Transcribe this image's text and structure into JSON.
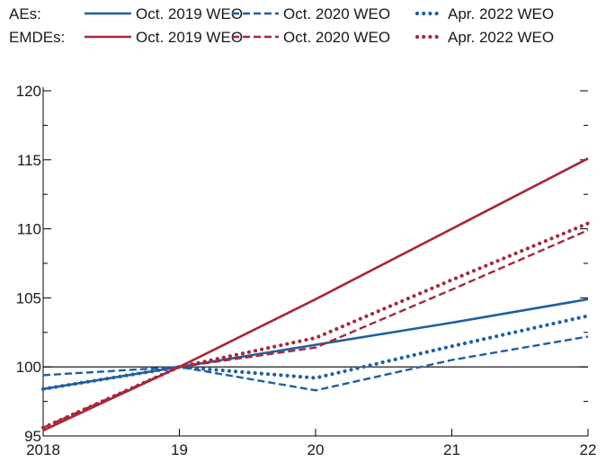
{
  "chart_data": {
    "type": "line",
    "x": [
      "2018",
      "19",
      "20",
      "21",
      "22"
    ],
    "ylim": [
      95,
      120
    ],
    "yticks": [
      95,
      100,
      105,
      110,
      115,
      120
    ],
    "reference_line": 100,
    "legend_groups": [
      {
        "label": "AEs:",
        "series_indices": [
          0,
          1,
          2
        ]
      },
      {
        "label": "EMDEs:",
        "series_indices": [
          3,
          4,
          5
        ]
      }
    ],
    "series": [
      {
        "name": "Oct. 2019 WEO",
        "group": "AEs",
        "color": "#1f5fa3",
        "style": "solid",
        "values": [
          98.4,
          100,
          101.6,
          103.2,
          104.9
        ]
      },
      {
        "name": "Oct. 2020 WEO",
        "group": "AEs",
        "color": "#1f5fa3",
        "style": "dashed",
        "values": [
          99.4,
          100,
          98.3,
          100.5,
          102.2
        ]
      },
      {
        "name": "Apr. 2022 WEO",
        "group": "AEs",
        "color": "#1f5fa3",
        "style": "dotted",
        "values": [
          98.4,
          100,
          99.2,
          101.5,
          103.7
        ]
      },
      {
        "name": "Oct. 2019 WEO",
        "group": "EMDEs",
        "color": "#a6283a",
        "style": "solid",
        "values": [
          95.4,
          100,
          104.9,
          110.0,
          115.1
        ]
      },
      {
        "name": "Oct. 2020 WEO",
        "group": "EMDEs",
        "color": "#a6283a",
        "style": "dashed",
        "values": [
          95.6,
          100,
          101.4,
          105.6,
          109.9
        ]
      },
      {
        "name": "Apr. 2022 WEO",
        "group": "EMDEs",
        "color": "#a6283a",
        "style": "dotted",
        "values": [
          95.6,
          100,
          102.1,
          106.3,
          110.4
        ]
      }
    ]
  }
}
